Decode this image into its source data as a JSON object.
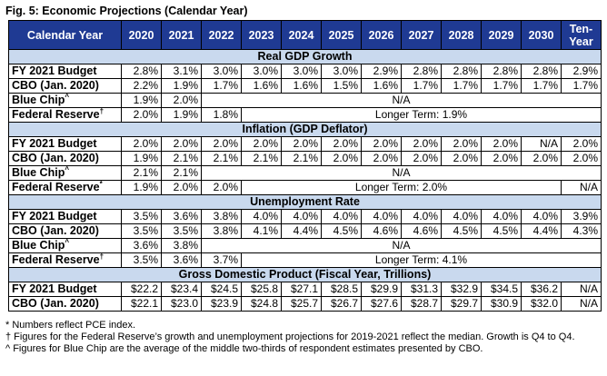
{
  "figure_title": "Fig. 5: Economic Projections (Calendar Year)",
  "header": {
    "label": "Calendar Year",
    "years": [
      "2020",
      "2021",
      "2022",
      "2023",
      "2024",
      "2025",
      "2026",
      "2027",
      "2028",
      "2029",
      "2030"
    ],
    "ten_year": "Ten-Year"
  },
  "sections": [
    {
      "title": "Real GDP Growth",
      "rows": [
        {
          "label": "FY 2021 Budget",
          "mark": "",
          "values": [
            "2.8%",
            "3.1%",
            "3.0%",
            "3.0%",
            "3.0%",
            "3.0%",
            "2.9%",
            "2.8%",
            "2.8%",
            "2.8%",
            "2.8%",
            "2.9%"
          ]
        },
        {
          "label": "CBO (Jan. 2020)",
          "mark": "",
          "values": [
            "2.2%",
            "1.9%",
            "1.7%",
            "1.6%",
            "1.6%",
            "1.5%",
            "1.6%",
            "1.7%",
            "1.7%",
            "1.7%",
            "1.7%",
            "1.7%"
          ]
        },
        {
          "label": "Blue Chip",
          "mark": "^",
          "values": [
            "1.9%",
            "2.0%"
          ],
          "span_text": "N/A"
        },
        {
          "label": "Federal Reserve",
          "mark": "†",
          "values": [
            "2.0%",
            "1.9%",
            "1.8%"
          ],
          "span_text": "Longer Term: 1.9%"
        }
      ]
    },
    {
      "title": "Inflation (GDP Deflator)",
      "rows": [
        {
          "label": "FY 2021 Budget",
          "mark": "",
          "values": [
            "2.0%",
            "2.0%",
            "2.0%",
            "2.0%",
            "2.0%",
            "2.0%",
            "2.0%",
            "2.0%",
            "2.0%",
            "2.0%",
            "N/A",
            "2.0%"
          ]
        },
        {
          "label": "CBO (Jan. 2020)",
          "mark": "",
          "values": [
            "1.9%",
            "2.1%",
            "2.1%",
            "2.1%",
            "2.1%",
            "2.0%",
            "2.0%",
            "2.0%",
            "2.0%",
            "2.0%",
            "2.0%",
            "2.0%"
          ]
        },
        {
          "label": "Blue Chip",
          "mark": "^",
          "values": [
            "2.1%",
            "2.1%"
          ],
          "span_text": "N/A"
        },
        {
          "label": "Federal Reserve",
          "mark": "*",
          "values": [
            "1.9%",
            "2.0%",
            "2.0%"
          ],
          "span_text": "Longer Term: 2.0%",
          "last": "N/A"
        }
      ]
    },
    {
      "title": "Unemployment Rate",
      "rows": [
        {
          "label": "FY 2021 Budget",
          "mark": "",
          "values": [
            "3.5%",
            "3.6%",
            "3.8%",
            "4.0%",
            "4.0%",
            "4.0%",
            "4.0%",
            "4.0%",
            "4.0%",
            "4.0%",
            "4.0%",
            "3.9%"
          ]
        },
        {
          "label": "CBO (Jan. 2020)",
          "mark": "",
          "values": [
            "3.5%",
            "3.5%",
            "3.8%",
            "4.1%",
            "4.4%",
            "4.5%",
            "4.6%",
            "4.6%",
            "4.5%",
            "4.5%",
            "4.4%",
            "4.3%"
          ]
        },
        {
          "label": "Blue Chip",
          "mark": "^",
          "values": [
            "3.6%",
            "3.8%"
          ],
          "span_text": "N/A"
        },
        {
          "label": "Federal Reserve",
          "mark": "†",
          "values": [
            "3.5%",
            "3.6%",
            "3.7%"
          ],
          "span_text": "Longer Term: 4.1%"
        }
      ]
    },
    {
      "title": "Gross Domestic Product (Fiscal Year, Trillions)",
      "rows": [
        {
          "label": "FY 2021 Budget",
          "mark": "",
          "values": [
            "$22.2",
            "$23.4",
            "$24.5",
            "$25.8",
            "$27.1",
            "$28.5",
            "$29.9",
            "$31.3",
            "$32.9",
            "$34.5",
            "$36.2",
            "N/A"
          ]
        },
        {
          "label": "CBO (Jan. 2020)",
          "mark": "",
          "values": [
            "$22.1",
            "$23.0",
            "$23.9",
            "$24.8",
            "$25.7",
            "$26.7",
            "$27.6",
            "$28.7",
            "$29.7",
            "$30.9",
            "$32.0",
            "N/A"
          ]
        }
      ]
    }
  ],
  "notes": [
    "* Numbers reflect PCE index.",
    "† Figures for the Federal Reserve’s growth and unemployment projections for 2019-2021 reflect the median. Growth is Q4 to Q4.",
    "^ Figures for Blue Chip are the average of the middle two-thirds of respondent estimates presented by CBO."
  ]
}
